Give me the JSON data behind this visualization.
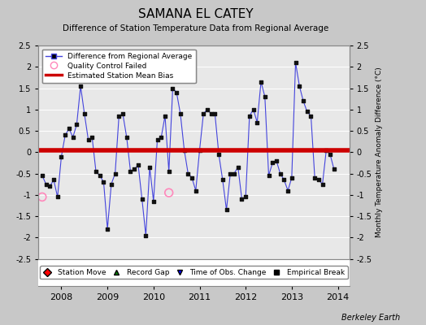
{
  "title": "SAMANA EL CATEY",
  "subtitle": "Difference of Station Temperature Data from Regional Average",
  "ylabel_right": "Monthly Temperature Anomaly Difference (°C)",
  "ylim": [
    -2.5,
    2.5
  ],
  "xlim": [
    2007.5,
    2014.25
  ],
  "xticks": [
    2008,
    2009,
    2010,
    2011,
    2012,
    2013,
    2014
  ],
  "yticks": [
    -2.5,
    -2.0,
    -1.5,
    -1.0,
    -0.5,
    0.0,
    0.5,
    1.0,
    1.5,
    2.0,
    2.5
  ],
  "bias_level": 0.05,
  "fig_bg_color": "#c8c8c8",
  "plot_bg_color": "#e8e8e8",
  "line_color": "#4444dd",
  "marker_color": "#111111",
  "bias_color": "#cc0000",
  "qc_color": "#ff88bb",
  "footer": "Berkeley Earth",
  "data": {
    "times": [
      2007.583,
      2007.667,
      2007.75,
      2007.833,
      2007.917,
      2008.0,
      2008.083,
      2008.167,
      2008.25,
      2008.333,
      2008.417,
      2008.5,
      2008.583,
      2008.667,
      2008.75,
      2008.833,
      2008.917,
      2009.0,
      2009.083,
      2009.167,
      2009.25,
      2009.333,
      2009.417,
      2009.5,
      2009.583,
      2009.667,
      2009.75,
      2009.833,
      2009.917,
      2010.0,
      2010.083,
      2010.167,
      2010.25,
      2010.333,
      2010.417,
      2010.5,
      2010.583,
      2010.667,
      2010.75,
      2010.833,
      2010.917,
      2011.0,
      2011.083,
      2011.167,
      2011.25,
      2011.333,
      2011.417,
      2011.5,
      2011.583,
      2011.667,
      2011.75,
      2011.833,
      2011.917,
      2012.0,
      2012.083,
      2012.167,
      2012.25,
      2012.333,
      2012.417,
      2012.5,
      2012.583,
      2012.667,
      2012.75,
      2012.833,
      2012.917,
      2013.0,
      2013.083,
      2013.167,
      2013.25,
      2013.333,
      2013.417,
      2013.5,
      2013.583,
      2013.667,
      2013.75,
      2013.833,
      2013.917
    ],
    "values": [
      -0.55,
      -0.75,
      -0.8,
      -0.65,
      -1.05,
      -0.1,
      0.4,
      0.55,
      0.35,
      0.65,
      1.55,
      0.9,
      0.3,
      0.35,
      -0.45,
      -0.55,
      -0.7,
      -1.8,
      -0.75,
      -0.5,
      0.85,
      0.9,
      0.35,
      -0.45,
      -0.4,
      -0.3,
      -1.1,
      -1.95,
      -0.35,
      -1.15,
      0.3,
      0.35,
      0.85,
      -0.45,
      1.5,
      1.4,
      0.9,
      0.05,
      -0.5,
      -0.6,
      -0.9,
      0.05,
      0.9,
      1.0,
      0.9,
      0.9,
      -0.05,
      -0.65,
      -1.35,
      -0.5,
      -0.5,
      -0.35,
      -1.1,
      -1.05,
      0.85,
      1.0,
      0.7,
      1.65,
      1.3,
      -0.55,
      -0.25,
      -0.2,
      -0.5,
      -0.65,
      -0.9,
      -0.6,
      2.1,
      1.55,
      1.2,
      0.95,
      0.85,
      -0.6,
      -0.65,
      -0.75,
      0.05,
      -0.05,
      -0.4
    ],
    "qc_failed_times": [
      2007.583,
      2010.333
    ],
    "qc_failed_values": [
      -1.05,
      -0.95
    ]
  }
}
